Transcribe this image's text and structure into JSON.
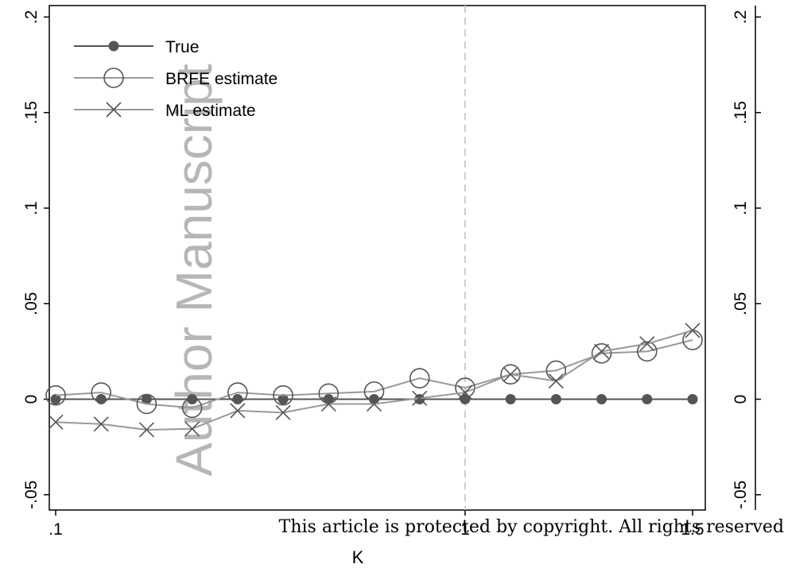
{
  "chart_data": [
    {
      "type": "line",
      "x_label": "K",
      "x": [
        0.1,
        0.2,
        0.3,
        0.4,
        0.5,
        0.6,
        0.7,
        0.8,
        0.9,
        1.0,
        1.1,
        1.2,
        1.3,
        1.4,
        1.5
      ],
      "series": [
        {
          "name": "True",
          "color": "#555555",
          "marker": "dot",
          "values": [
            0,
            0,
            0,
            0,
            0,
            0,
            0,
            0,
            0,
            0,
            0,
            0,
            0,
            0,
            0
          ]
        },
        {
          "name": "BRFE estimate",
          "color": "#999999",
          "marker": "circle",
          "values": [
            0.002,
            0.0035,
            -0.0025,
            -0.0045,
            0.0035,
            0.002,
            0.003,
            0.004,
            0.011,
            0.006,
            0.013,
            0.015,
            0.024,
            0.025,
            0.031
          ]
        },
        {
          "name": "ML estimate",
          "color": "#999999",
          "marker": "cross",
          "values": [
            -0.012,
            -0.013,
            -0.016,
            -0.0155,
            -0.006,
            -0.007,
            -0.0025,
            -0.0025,
            0.0005,
            0.0035,
            0.013,
            0.0095,
            0.025,
            0.029,
            0.036
          ]
        }
      ],
      "xlim": [
        0.086,
        1.528
      ],
      "xticks": [
        {
          "value": 0.1,
          "label": ".1"
        },
        1,
        1.5
      ],
      "ylim": [
        -0.058,
        0.206
      ],
      "yticks": [
        {
          "value": -0.05,
          "label": "-.05"
        },
        0,
        {
          "value": 0.05,
          "label": ".05"
        },
        {
          "value": 0.1,
          "label": ".1"
        },
        {
          "value": 0.15,
          "label": ".15"
        },
        {
          "value": 0.2,
          "label": ".2"
        }
      ],
      "xline": 1,
      "legend": "top-left"
    },
    {
      "type": "line",
      "ylim": [
        -0.058,
        0.206
      ],
      "yticks": [
        {
          "value": -0.05,
          "label": "-.05"
        },
        0,
        {
          "value": 0.05,
          "label": ".05"
        },
        {
          "value": 0.1,
          "label": ".1"
        },
        {
          "value": 0.15,
          "label": ".15"
        },
        {
          "value": 0.2,
          "label": ".2"
        }
      ]
    }
  ],
  "watermark": "Author Manuscript",
  "footer": "This article is protected by copyright. All rights reserved"
}
